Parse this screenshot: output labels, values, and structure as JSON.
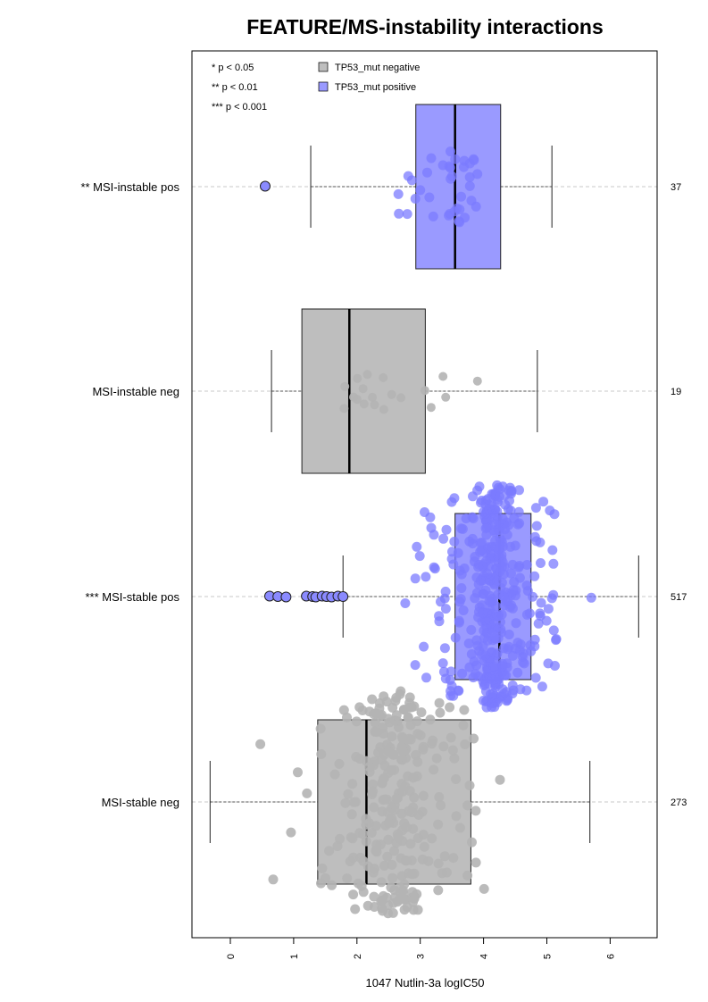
{
  "chart_data": {
    "type": "box",
    "title": "FEATURE/MS-instability interactions",
    "xlabel": "1047 Nutlin-3a logIC50",
    "xlim": [
      -0.6,
      6.75
    ],
    "x_ticks": [
      "0",
      "1",
      "2",
      "3",
      "4",
      "5",
      "6"
    ],
    "significance_legend": [
      "* p < 0.05",
      "** p < 0.01",
      "*** p < 0.001"
    ],
    "series_legend": [
      {
        "name": "TP53_mut negative",
        "color": "#bebebe"
      },
      {
        "name": "TP53_mut positive",
        "color": "#9a9aff"
      }
    ],
    "groups": [
      {
        "label": "** MSI-instable pos",
        "count": "37",
        "tp53": "positive",
        "whisker_low": 1.27,
        "q1": 2.93,
        "median": 3.55,
        "q3": 4.27,
        "whisker_high": 5.08,
        "outliers": [
          0.55
        ]
      },
      {
        "label": "MSI-instable neg",
        "count": "19",
        "tp53": "negative",
        "whisker_low": 0.65,
        "q1": 1.13,
        "median": 1.88,
        "q3": 3.08,
        "whisker_high": 4.85,
        "outliers": []
      },
      {
        "label": "*** MSI-stable pos",
        "count": "517",
        "tp53": "positive",
        "whisker_low": 1.78,
        "q1": 3.55,
        "median": 4.25,
        "q3": 4.75,
        "whisker_high": 6.45,
        "outliers": [
          0.62,
          0.75,
          0.88,
          1.2,
          1.3,
          1.35,
          1.45,
          1.52,
          1.6,
          1.7,
          1.78
        ]
      },
      {
        "label": "MSI-stable neg",
        "count": "273",
        "tp53": "negative",
        "whisker_low": -0.32,
        "q1": 1.38,
        "median": 2.15,
        "q3": 3.8,
        "whisker_high": 5.68,
        "outliers": []
      }
    ],
    "colors": {
      "negative": "#bebebe",
      "positive": "#9a9aff",
      "positive_dot": "#7b7bff",
      "negative_dot": "#b4b4b4"
    },
    "grid": "horizontal dashed at each group"
  }
}
